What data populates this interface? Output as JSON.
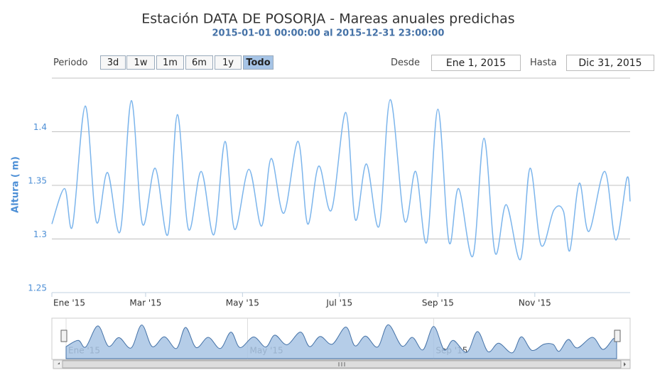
{
  "chart_data": {
    "type": "line",
    "title": "Estación DATA DE POSORJA - Mareas anuales predichas",
    "subtitle": "2015-01-01 00:00:00 al 2015-12-31 23:00:00",
    "y_axis_label": "Altura ( m)",
    "x": [
      0,
      8,
      13,
      21,
      28,
      35,
      43,
      50,
      57,
      65,
      73,
      79,
      86,
      94,
      102,
      109,
      115,
      124,
      132,
      138,
      146,
      155,
      161,
      168,
      176,
      185,
      191,
      198,
      206,
      213,
      222,
      229,
      236,
      243,
      250,
      256,
      265,
      272,
      279,
      286,
      295,
      301,
      308,
      316,
      322,
      326,
      332,
      338,
      348,
      355,
      362,
      364
    ],
    "series": [
      {
        "color": "#7cb5ec",
        "values": [
          1.314,
          1.347,
          1.312,
          1.424,
          1.316,
          1.362,
          1.307,
          1.429,
          1.314,
          1.366,
          1.304,
          1.416,
          1.309,
          1.363,
          1.304,
          1.391,
          1.309,
          1.365,
          1.312,
          1.375,
          1.324,
          1.391,
          1.314,
          1.368,
          1.327,
          1.418,
          1.318,
          1.37,
          1.312,
          1.43,
          1.317,
          1.363,
          1.297,
          1.421,
          1.297,
          1.347,
          1.284,
          1.394,
          1.287,
          1.332,
          1.281,
          1.366,
          1.294,
          1.327,
          1.326,
          1.289,
          1.352,
          1.307,
          1.363,
          1.299,
          1.357,
          1.335
        ]
      }
    ],
    "xlim": [
      0,
      364
    ],
    "xticks": [
      {
        "value": 0,
        "label": "Ene '15"
      },
      {
        "value": 59,
        "label": "Mar '15"
      },
      {
        "value": 120,
        "label": "May '15"
      },
      {
        "value": 181,
        "label": "Jul '15"
      },
      {
        "value": 243,
        "label": "Sep '15"
      },
      {
        "value": 304,
        "label": "Nov '15"
      }
    ],
    "ylim": [
      1.25,
      1.45
    ],
    "yticks": [
      1.25,
      1.3,
      1.35,
      1.4
    ],
    "grid": true,
    "navigator": {
      "color": "#4572a7",
      "fill": "#a8c4e4",
      "xticks": [
        {
          "value": 0,
          "label": "Ene '15"
        },
        {
          "value": 120,
          "label": "May '15"
        },
        {
          "value": 243,
          "label": "Sep '15"
        }
      ]
    }
  },
  "range_selector": {
    "label": "Periodo",
    "buttons": [
      "3d",
      "1w",
      "1m",
      "6m",
      "1y",
      "Todo"
    ],
    "selected": 5,
    "from_label": "Desde",
    "from": "Ene 1, 2015",
    "to_label": "Hasta",
    "to": "Dic 31, 2015"
  }
}
